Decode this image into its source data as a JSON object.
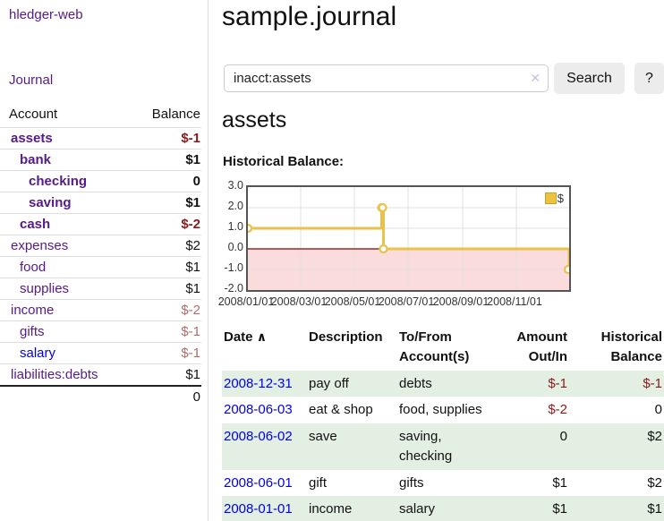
{
  "app": {
    "title": "hledger-web",
    "nav_journal": "Journal"
  },
  "sidebar": {
    "header": {
      "account": "Account",
      "balance": "Balance"
    },
    "accounts": [
      {
        "label": "assets",
        "indent": 0,
        "bold": true,
        "balance": "$-1",
        "balance_tone": "neg-strong",
        "link_tone": "visited"
      },
      {
        "label": "bank",
        "indent": 1,
        "bold": true,
        "balance": "$1",
        "balance_tone": "normal",
        "link_tone": "visited"
      },
      {
        "label": "checking",
        "indent": 2,
        "bold": true,
        "balance": "0",
        "balance_tone": "normal",
        "link_tone": "visited"
      },
      {
        "label": "saving",
        "indent": 2,
        "bold": true,
        "balance": "$1",
        "balance_tone": "normal",
        "link_tone": "visited"
      },
      {
        "label": "cash",
        "indent": 1,
        "bold": true,
        "balance": "$-2",
        "balance_tone": "neg-strong",
        "link_tone": "visited"
      },
      {
        "label": "expenses",
        "indent": 0,
        "bold": false,
        "balance": "$2",
        "balance_tone": "normal",
        "link_tone": "visited"
      },
      {
        "label": "food",
        "indent": 1,
        "bold": false,
        "balance": "$1",
        "balance_tone": "normal",
        "link_tone": "visited"
      },
      {
        "label": "supplies",
        "indent": 1,
        "bold": false,
        "balance": "$1",
        "balance_tone": "normal",
        "link_tone": "visited"
      },
      {
        "label": "income",
        "indent": 0,
        "bold": false,
        "balance": "$-2",
        "balance_tone": "neg-weak",
        "link_tone": "visited"
      },
      {
        "label": "gifts",
        "indent": 1,
        "bold": false,
        "balance": "$-1",
        "balance_tone": "neg-weak",
        "link_tone": "visited"
      },
      {
        "label": "salary",
        "indent": 1,
        "bold": false,
        "balance": "$-1",
        "balance_tone": "neg-weak",
        "link_tone": "unvisited"
      },
      {
        "label": "liabilities:debts",
        "indent": 0,
        "bold": false,
        "balance": "$1",
        "balance_tone": "normal",
        "link_tone": "visited"
      }
    ],
    "total": "0"
  },
  "main": {
    "title": "sample.journal",
    "search": {
      "value": "inacct:assets",
      "clear_icon": "✕",
      "button_label": "Search",
      "help_label": "?"
    },
    "account_heading": "assets",
    "chart_heading": "Historical Balance:"
  },
  "chart_data": {
    "type": "line",
    "step": true,
    "title": "Historical Balance",
    "series": [
      {
        "name": "$",
        "color": "#edc240",
        "points": [
          [
            "2008-01-01",
            1
          ],
          [
            "2008-06-01",
            2
          ],
          [
            "2008-06-02",
            2
          ],
          [
            "2008-06-03",
            0
          ],
          [
            "2008-12-31",
            -1
          ]
        ]
      }
    ],
    "x_range": [
      "2008-01-01",
      "2008-12-31"
    ],
    "x_tick_labels": [
      "2008/01/01",
      "2008/03/01",
      "2008/05/01",
      "2008/07/01",
      "2008/09/01",
      "2008/11/01"
    ],
    "x_tick_dates": [
      "2008-01-01",
      "2008-03-01",
      "2008-05-01",
      "2008-07-01",
      "2008-09-01",
      "2008-11-01"
    ],
    "y_ticks": [
      3.0,
      2.0,
      1.0,
      0.0,
      -1.0,
      -2.0
    ],
    "y_tick_labels": [
      "3.0",
      "2.0",
      "1.0",
      "0.0",
      "-1.0",
      "-2.0"
    ],
    "ylim": [
      -2,
      3
    ],
    "grid": true,
    "legend": {
      "label": "$",
      "position": "top-right"
    },
    "colors": {
      "line": "#e9c14c",
      "marker_fill": "#ffffff",
      "grid": "#e0e0e0",
      "zero_line": "#8b0000",
      "negative_region": "#fbdcdc",
      "border": "#545454"
    }
  },
  "register": {
    "headers": {
      "date": "Date",
      "description": "Description",
      "accounts": "To/From Account(s)",
      "amount": "Amount Out/In",
      "balance": "Historical Balance"
    },
    "sort_icon": "∧",
    "rows": [
      {
        "date": "2008-12-31",
        "description": "pay off",
        "accounts": "debts",
        "amount": "$-1",
        "amount_neg": true,
        "balance": "$-1",
        "balance_neg": true,
        "shaded": true
      },
      {
        "date": "2008-06-03",
        "description": "eat & shop",
        "accounts": "food, supplies",
        "amount": "$-2",
        "amount_neg": true,
        "balance": "0",
        "balance_neg": false,
        "shaded": false
      },
      {
        "date": "2008-06-02",
        "description": "save",
        "accounts": "saving, checking",
        "amount": "0",
        "amount_neg": false,
        "balance": "$2",
        "balance_neg": false,
        "shaded": true
      },
      {
        "date": "2008-06-01",
        "description": "gift",
        "accounts": "gifts",
        "amount": "$1",
        "amount_neg": false,
        "balance": "$2",
        "balance_neg": false,
        "shaded": false
      },
      {
        "date": "2008-01-01",
        "description": "income",
        "accounts": "salary",
        "amount": "$1",
        "amount_neg": false,
        "balance": "$1",
        "balance_neg": false,
        "shaded": true
      }
    ]
  }
}
